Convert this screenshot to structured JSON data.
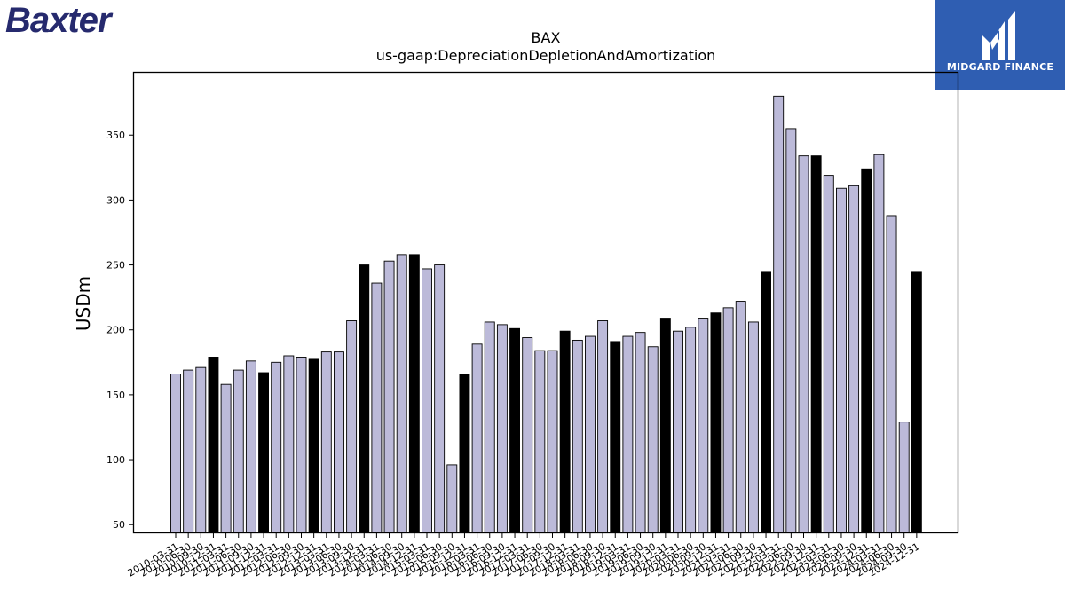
{
  "brand": {
    "logo_text": "Baxter",
    "badge_text": "MIDGARD FINANCE"
  },
  "colors": {
    "bar_default": "#bcbad9",
    "bar_highlight": "#000000",
    "edge": "#000000",
    "brand": "#262a6e",
    "badge_bg": "#2f5eb2"
  },
  "chart_data": {
    "type": "bar",
    "title": "BAX",
    "subtitle": "us-gaap:DepreciationDepletionAndAmortization",
    "xlabel": "",
    "ylabel": "USDm",
    "ylim": [
      44,
      398
    ],
    "yticks": [
      50,
      100,
      150,
      200,
      250,
      300,
      350
    ],
    "grid": false,
    "legend": "none",
    "categories": [
      "2010-03-31",
      "2010-06-30",
      "2010-09-30",
      "2010-12-31",
      "2011-03-31",
      "2011-06-30",
      "2011-09-30",
      "2011-12-31",
      "2012-03-31",
      "2012-06-30",
      "2012-09-30",
      "2012-12-31",
      "2013-03-31",
      "2013-06-30",
      "2013-09-30",
      "2013-12-31",
      "2014-03-31",
      "2014-06-30",
      "2014-09-30",
      "2014-12-31",
      "2015-03-31",
      "2015-06-30",
      "2015-09-30",
      "2015-12-31",
      "2016-03-31",
      "2016-06-30",
      "2016-09-30",
      "2016-12-31",
      "2017-03-31",
      "2017-06-30",
      "2017-09-30",
      "2017-12-31",
      "2018-03-31",
      "2018-06-30",
      "2018-09-30",
      "2018-12-31",
      "2019-03-31",
      "2019-06-30",
      "2019-09-30",
      "2019-12-31",
      "2020-03-31",
      "2020-06-30",
      "2020-09-30",
      "2020-12-31",
      "2021-03-31",
      "2021-06-30",
      "2021-09-30",
      "2021-12-31",
      "2022-03-31",
      "2022-06-30",
      "2022-09-30",
      "2022-12-31",
      "2023-03-31",
      "2023-06-30",
      "2023-09-30",
      "2023-12-31",
      "2024-03-31",
      "2024-06-30",
      "2024-09-30",
      "2024-12-31"
    ],
    "values": [
      166,
      169,
      171,
      179,
      158,
      169,
      176,
      167,
      175,
      180,
      179,
      178,
      183,
      183,
      207,
      250,
      236,
      253,
      258,
      258,
      247,
      250,
      96,
      166,
      189,
      206,
      204,
      201,
      194,
      184,
      184,
      199,
      192,
      195,
      207,
      191,
      195,
      198,
      187,
      209,
      199,
      202,
      209,
      213,
      217,
      222,
      206,
      245,
      380,
      355,
      334,
      334,
      319,
      309,
      311,
      324,
      335,
      288,
      129,
      245
    ],
    "highlight": [
      false,
      false,
      false,
      true,
      false,
      false,
      false,
      true,
      false,
      false,
      false,
      true,
      false,
      false,
      false,
      true,
      false,
      false,
      false,
      true,
      false,
      false,
      false,
      true,
      false,
      false,
      false,
      true,
      false,
      false,
      false,
      true,
      false,
      false,
      false,
      true,
      false,
      false,
      false,
      true,
      false,
      false,
      false,
      true,
      false,
      false,
      false,
      true,
      false,
      false,
      false,
      true,
      false,
      false,
      false,
      true,
      false,
      false,
      false,
      true
    ]
  }
}
